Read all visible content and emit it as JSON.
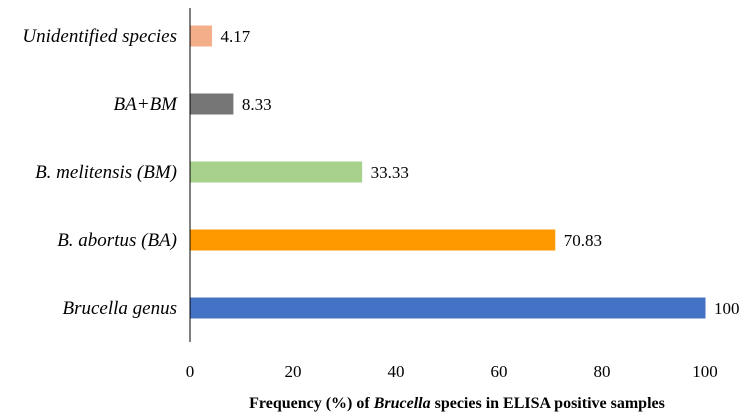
{
  "chart_data": {
    "type": "bar",
    "orientation": "horizontal",
    "categories": [
      "Unidentified species",
      "BA+BM",
      "B. melitensis (BM)",
      "B. abortus (BA)",
      "Brucella genus"
    ],
    "values": [
      4.17,
      8.33,
      33.33,
      70.83,
      100
    ],
    "value_labels": [
      "4.17",
      "8.33",
      "33.33",
      "70.83",
      "100"
    ],
    "colors": [
      "#F4AE8A",
      "#767676",
      "#A9D18E",
      "#FF9900",
      "#4472C4"
    ],
    "xlim": [
      0,
      100
    ],
    "xticks": [
      "0",
      "20",
      "40",
      "60",
      "80",
      "100"
    ],
    "xlabel": {
      "before": "Frequency (%) of ",
      "italic": "Brucella",
      "after": " species in ELISA positive samples"
    },
    "ylabel": "",
    "grid": false
  }
}
